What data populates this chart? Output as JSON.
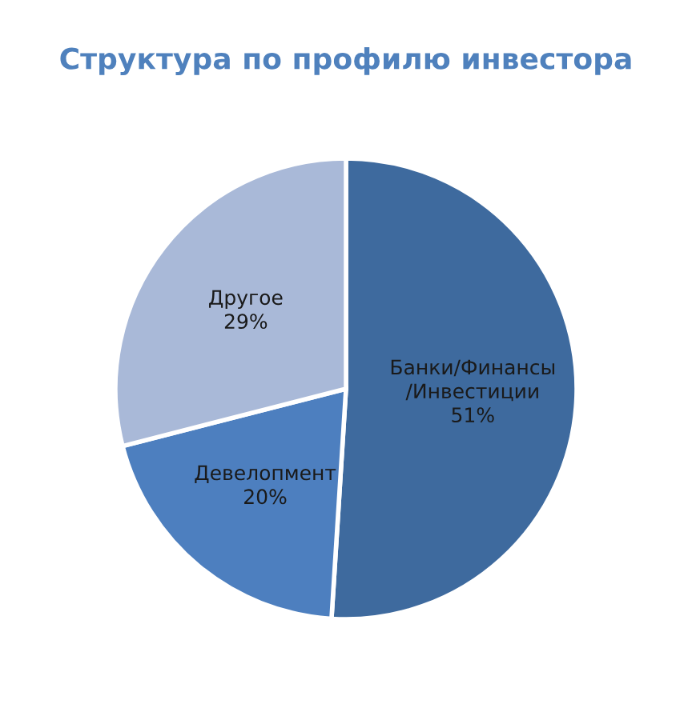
{
  "chart_data": {
    "type": "pie",
    "title": "Структура по профилю инвестора",
    "categories": [
      "Банки/Финансы\n/Инвестиции",
      "Девелопмент",
      "Другое"
    ],
    "values": [
      51,
      20,
      29
    ],
    "colors": [
      "#3e6a9e",
      "#4d7fbf",
      "#a9b9d8"
    ],
    "value_labels": [
      "51%",
      "20%",
      "29%"
    ]
  }
}
